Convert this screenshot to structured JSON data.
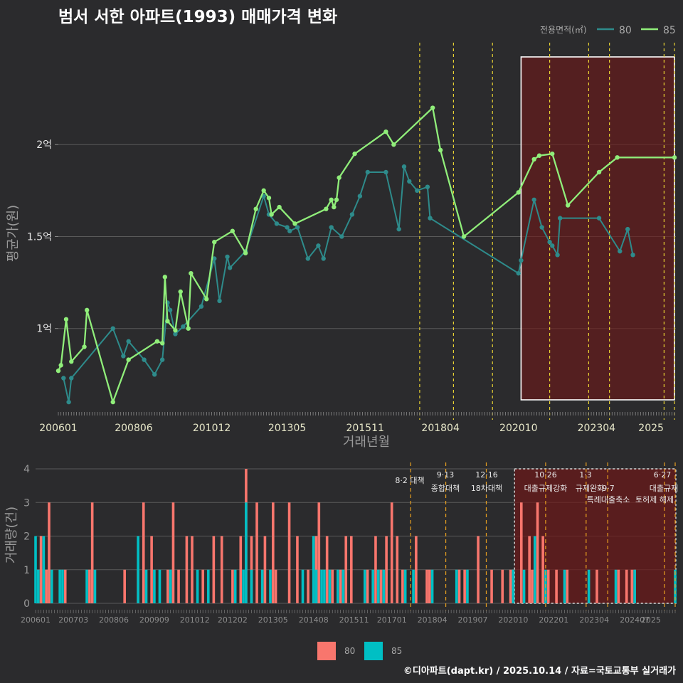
{
  "title": "범서 서한 아파트(1993) 매매가격 변화",
  "legend": {
    "title": "전용면적(㎡)",
    "items": [
      {
        "label": "80",
        "color": "#2e8b8b"
      },
      {
        "label": "85",
        "color": "#90ee7a"
      }
    ]
  },
  "credit": "©디아파트(dapt.kr) / 2025.10.14 / 자료=국토교통부 실거래가",
  "chart_data": [
    {
      "type": "line",
      "title": "범서 서한 아파트(1993) 매매가격 변화",
      "xlabel": "거래년월",
      "ylabel": "평균가(원)",
      "ylim": [
        0.55,
        2.5
      ],
      "y_unit": "억",
      "x_range": [
        "2006-01",
        "2025-10"
      ],
      "x_ticks": [
        "200601",
        "200806",
        "201012",
        "201305",
        "201511",
        "201804",
        "202010",
        "202304",
        "2025"
      ],
      "y_ticks": [
        {
          "value": 1,
          "label": "1억"
        },
        {
          "value": 1.5,
          "label": "1.5억"
        },
        {
          "value": 2,
          "label": "2억"
        }
      ],
      "policy_lines": [
        "2017-08",
        "2018-09",
        "2019-12",
        "2021-10",
        "2023-01",
        "2023-09",
        "2025-06",
        "2025-10"
      ],
      "highlight_range": [
        "2020-11",
        "2025-10"
      ],
      "series": [
        {
          "name": "85",
          "color": "#90ee7a",
          "points": [
            [
              "2006-01",
              0.77
            ],
            [
              "2006-02",
              0.8
            ],
            [
              "2006-04",
              1.05
            ],
            [
              "2006-06",
              0.82
            ],
            [
              "2006-11",
              0.9
            ],
            [
              "2006-12",
              1.1
            ],
            [
              "2007-10",
              0.6
            ],
            [
              "2008-04",
              0.83
            ],
            [
              "2009-03",
              0.93
            ],
            [
              "2009-05",
              0.92
            ],
            [
              "2009-06",
              1.28
            ],
            [
              "2009-07",
              1.04
            ],
            [
              "2009-10",
              0.99
            ],
            [
              "2009-12",
              1.2
            ],
            [
              "2010-03",
              1.0
            ],
            [
              "2010-04",
              1.3
            ],
            [
              "2010-10",
              1.16
            ],
            [
              "2011-01",
              1.47
            ],
            [
              "2011-08",
              1.53
            ],
            [
              "2012-01",
              1.41
            ],
            [
              "2012-05",
              1.65
            ],
            [
              "2012-08",
              1.75
            ],
            [
              "2012-10",
              1.71
            ],
            [
              "2012-11",
              1.62
            ],
            [
              "2013-02",
              1.66
            ],
            [
              "2013-08",
              1.57
            ],
            [
              "2014-08",
              1.65
            ],
            [
              "2014-10",
              1.7
            ],
            [
              "2014-11",
              1.66
            ],
            [
              "2014-12",
              1.7
            ],
            [
              "2015-01",
              1.82
            ],
            [
              "2015-07",
              1.95
            ],
            [
              "2016-07",
              2.07
            ],
            [
              "2016-10",
              2.0
            ],
            [
              "2018-01",
              2.2
            ],
            [
              "2018-04",
              1.97
            ],
            [
              "2019-01",
              1.5
            ],
            [
              "2020-10",
              1.74
            ],
            [
              "2021-04",
              1.92
            ],
            [
              "2021-06",
              1.94
            ],
            [
              "2021-11",
              1.95
            ],
            [
              "2022-05",
              1.67
            ],
            [
              "2023-05",
              1.85
            ],
            [
              "2023-12",
              1.93
            ],
            [
              "2025-10",
              1.93
            ]
          ]
        },
        {
          "name": "80",
          "color": "#2e8b8b",
          "points": [
            [
              "2006-03",
              0.73
            ],
            [
              "2006-05",
              0.6
            ],
            [
              "2006-06",
              0.73
            ],
            [
              "2007-10",
              1.0
            ],
            [
              "2008-02",
              0.85
            ],
            [
              "2008-04",
              0.93
            ],
            [
              "2008-10",
              0.83
            ],
            [
              "2009-02",
              0.75
            ],
            [
              "2009-05",
              0.83
            ],
            [
              "2009-07",
              1.14
            ],
            [
              "2009-08",
              1.1
            ],
            [
              "2009-10",
              0.97
            ],
            [
              "2010-01",
              1.01
            ],
            [
              "2010-08",
              1.12
            ],
            [
              "2011-01",
              1.38
            ],
            [
              "2011-03",
              1.15
            ],
            [
              "2011-06",
              1.39
            ],
            [
              "2011-07",
              1.33
            ],
            [
              "2012-01",
              1.42
            ],
            [
              "2012-08",
              1.72
            ],
            [
              "2012-10",
              1.62
            ],
            [
              "2013-01",
              1.57
            ],
            [
              "2013-05",
              1.55
            ],
            [
              "2013-06",
              1.53
            ],
            [
              "2013-09",
              1.55
            ],
            [
              "2014-01",
              1.38
            ],
            [
              "2014-05",
              1.45
            ],
            [
              "2014-07",
              1.38
            ],
            [
              "2014-10",
              1.55
            ],
            [
              "2015-02",
              1.5
            ],
            [
              "2015-06",
              1.62
            ],
            [
              "2015-09",
              1.72
            ],
            [
              "2015-12",
              1.85
            ],
            [
              "2016-07",
              1.85
            ],
            [
              "2016-12",
              1.54
            ],
            [
              "2017-02",
              1.88
            ],
            [
              "2017-04",
              1.8
            ],
            [
              "2017-07",
              1.75
            ],
            [
              "2017-11",
              1.77
            ],
            [
              "2017-12",
              1.6
            ],
            [
              "2020-10",
              1.3
            ],
            [
              "2020-11",
              1.37
            ],
            [
              "2021-04",
              1.7
            ],
            [
              "2021-07",
              1.55
            ],
            [
              "2021-10",
              1.47
            ],
            [
              "2021-11",
              1.45
            ],
            [
              "2022-01",
              1.4
            ],
            [
              "2022-02",
              1.6
            ],
            [
              "2023-05",
              1.6
            ],
            [
              "2024-01",
              1.42
            ],
            [
              "2024-04",
              1.54
            ],
            [
              "2024-06",
              1.4
            ]
          ]
        }
      ]
    },
    {
      "type": "bar",
      "xlabel": "",
      "ylabel": "거래량(건)",
      "ylim": [
        0,
        4
      ],
      "y_ticks": [
        0,
        1,
        2,
        3,
        4
      ],
      "x_ticks": [
        "200601",
        "200703",
        "200806",
        "200909",
        "201012",
        "201202",
        "201305",
        "201408",
        "201511",
        "201701",
        "201804",
        "201907",
        "202010",
        "202201",
        "202304",
        "202407",
        "2025"
      ],
      "legend": [
        "80",
        "85"
      ],
      "annotations": [
        {
          "date": "2017-08",
          "line1": "8·2 대책",
          "line2": ""
        },
        {
          "date": "2018-09",
          "line1": "9·13",
          "line2": "종합대책"
        },
        {
          "date": "2019-12",
          "line1": "12·16",
          "line2": "18차대책"
        },
        {
          "date": "2021-10",
          "line1": "10·26",
          "line2": "대출규제강화"
        },
        {
          "date": "2023-01",
          "line1": "1·3",
          "line2": "규제완화"
        },
        {
          "date": "2023-09",
          "line1": "9·7",
          "line2": "특례대출축소"
        },
        {
          "date": "2025-06",
          "line1": "6·27",
          "line2": "대출규제"
        },
        {
          "date": "2025-10",
          "line1": "",
          "line2": "토허제 해제"
        }
      ],
      "series": [
        {
          "name": "80",
          "color": "#f8766d",
          "points": [
            [
              "2006-02",
              1
            ],
            [
              "2006-03",
              2
            ],
            [
              "2006-04",
              1
            ],
            [
              "2006-05",
              1
            ],
            [
              "2006-06",
              3
            ],
            [
              "2006-12",
              1
            ],
            [
              "2007-09",
              1
            ],
            [
              "2007-10",
              3
            ],
            [
              "2008-10",
              1
            ],
            [
              "2009-03",
              1
            ],
            [
              "2009-05",
              3
            ],
            [
              "2009-08",
              2
            ],
            [
              "2010-02",
              1
            ],
            [
              "2010-04",
              3
            ],
            [
              "2010-06",
              1
            ],
            [
              "2010-09",
              2
            ],
            [
              "2010-11",
              2
            ],
            [
              "2011-03",
              1
            ],
            [
              "2011-07",
              2
            ],
            [
              "2011-10",
              2
            ],
            [
              "2012-02",
              1
            ],
            [
              "2012-05",
              2
            ],
            [
              "2012-07",
              4
            ],
            [
              "2012-09",
              2
            ],
            [
              "2012-11",
              3
            ],
            [
              "2013-02",
              2
            ],
            [
              "2013-05",
              3
            ],
            [
              "2013-06",
              1
            ],
            [
              "2013-11",
              3
            ],
            [
              "2014-02",
              2
            ],
            [
              "2014-06",
              1
            ],
            [
              "2014-09",
              2
            ],
            [
              "2014-10",
              3
            ],
            [
              "2015-01",
              2
            ],
            [
              "2015-03",
              1
            ],
            [
              "2015-06",
              1
            ],
            [
              "2015-08",
              2
            ],
            [
              "2015-10",
              2
            ],
            [
              "2016-04",
              1
            ],
            [
              "2016-07",
              2
            ],
            [
              "2016-09",
              1
            ],
            [
              "2016-11",
              2
            ],
            [
              "2017-01",
              3
            ],
            [
              "2017-03",
              2
            ],
            [
              "2017-05",
              1
            ],
            [
              "2017-10",
              2
            ],
            [
              "2018-02",
              1
            ],
            [
              "2018-03",
              1
            ],
            [
              "2019-02",
              1
            ],
            [
              "2019-04",
              1
            ],
            [
              "2019-09",
              2
            ],
            [
              "2020-02",
              1
            ],
            [
              "2020-06",
              1
            ],
            [
              "2020-09",
              1
            ],
            [
              "2020-10",
              1
            ],
            [
              "2021-01",
              3
            ],
            [
              "2021-04",
              2
            ],
            [
              "2021-05",
              1
            ],
            [
              "2021-07",
              3
            ],
            [
              "2021-09",
              2
            ],
            [
              "2021-11",
              1
            ],
            [
              "2022-02",
              1
            ],
            [
              "2022-06",
              1
            ],
            [
              "2023-05",
              1
            ],
            [
              "2024-01",
              1
            ],
            [
              "2024-04",
              1
            ],
            [
              "2024-06",
              1
            ],
            [
              "2024-07",
              1
            ]
          ]
        },
        {
          "name": "85",
          "color": "#00bfc4",
          "points": [
            [
              "2006-01",
              2
            ],
            [
              "2006-02",
              1
            ],
            [
              "2006-04",
              2
            ],
            [
              "2006-07",
              1
            ],
            [
              "2006-10",
              1
            ],
            [
              "2006-11",
              1
            ],
            [
              "2007-08",
              1
            ],
            [
              "2007-11",
              1
            ],
            [
              "2009-03",
              2
            ],
            [
              "2009-06",
              1
            ],
            [
              "2009-09",
              1
            ],
            [
              "2009-11",
              1
            ],
            [
              "2010-03",
              1
            ],
            [
              "2011-01",
              1
            ],
            [
              "2011-05",
              1
            ],
            [
              "2012-03",
              1
            ],
            [
              "2012-06",
              1
            ],
            [
              "2012-07",
              3
            ],
            [
              "2012-09",
              1
            ],
            [
              "2013-01",
              1
            ],
            [
              "2013-04",
              1
            ],
            [
              "2014-04",
              1
            ],
            [
              "2014-08",
              2
            ],
            [
              "2014-09",
              1
            ],
            [
              "2014-11",
              1
            ],
            [
              "2014-12",
              1
            ],
            [
              "2015-02",
              1
            ],
            [
              "2015-05",
              1
            ],
            [
              "2015-07",
              1
            ],
            [
              "2016-03",
              1
            ],
            [
              "2016-06",
              1
            ],
            [
              "2016-08",
              1
            ],
            [
              "2016-10",
              1
            ],
            [
              "2017-06",
              1
            ],
            [
              "2017-09",
              1
            ],
            [
              "2018-04",
              1
            ],
            [
              "2019-01",
              1
            ],
            [
              "2019-05",
              1
            ],
            [
              "2020-10",
              1
            ],
            [
              "2021-02",
              1
            ],
            [
              "2021-06",
              2
            ],
            [
              "2021-10",
              1
            ],
            [
              "2022-05",
              1
            ],
            [
              "2023-02",
              1
            ],
            [
              "2023-12",
              1
            ],
            [
              "2024-07",
              1
            ],
            [
              "2025-10",
              1
            ]
          ]
        }
      ]
    }
  ]
}
